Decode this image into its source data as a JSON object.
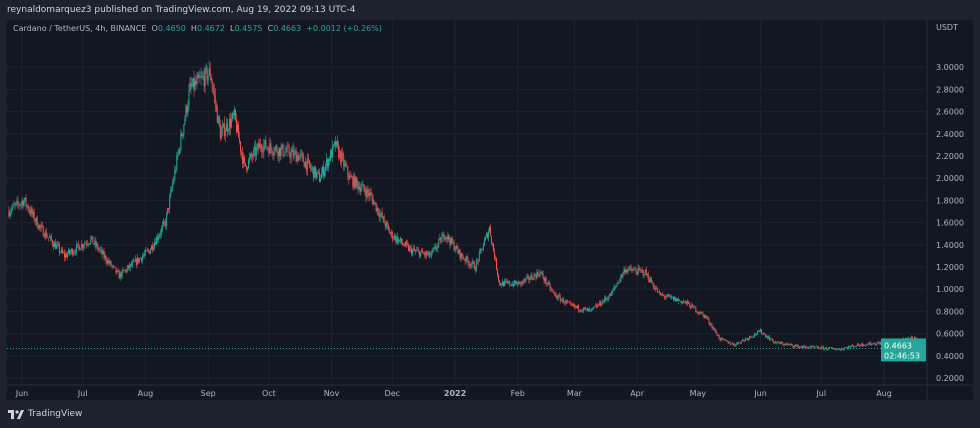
{
  "header": {
    "published": "reynaldomarquez3 published on TradingView.com, Aug 19, 2022 09:13 UTC-4"
  },
  "legend": {
    "symbol": "Cardano / TetherUS, 4h, BINANCE",
    "o_label": "O",
    "o": "0.4650",
    "h_label": "H",
    "h": "0.4672",
    "l_label": "L",
    "l": "0.4575",
    "c_label": "C",
    "c": "0.4663",
    "change": "+0.0012 (+0.26%)"
  },
  "footer": {
    "brand": "TradingView"
  },
  "colors": {
    "background": "#131722",
    "up": "#26a69a",
    "down": "#ef5350",
    "grid": "#1f2330",
    "price_label": "#26a69a"
  },
  "chart_data": {
    "type": "candlestick",
    "title": "Cardano / TetherUS, 4h, BINANCE",
    "y_unit": "USDT",
    "ylim": [
      0.1,
      3.25
    ],
    "y_ticks": [
      "0.2000",
      "0.4000",
      "0.6000",
      "0.8000",
      "1.0000",
      "1.2000",
      "1.4000",
      "1.6000",
      "1.8000",
      "2.0000",
      "2.2000",
      "2.4000",
      "2.6000",
      "2.8000",
      "3.0000"
    ],
    "x_ticks": [
      {
        "label": "Jun",
        "date": "2021-06-01"
      },
      {
        "label": "Jul",
        "date": "2021-07-01"
      },
      {
        "label": "Aug",
        "date": "2021-08-01"
      },
      {
        "label": "Sep",
        "date": "2021-09-01"
      },
      {
        "label": "Oct",
        "date": "2021-10-01"
      },
      {
        "label": "Nov",
        "date": "2021-11-01"
      },
      {
        "label": "Dec",
        "date": "2021-12-01"
      },
      {
        "label": "2022",
        "date": "2022-01-01",
        "bold": true
      },
      {
        "label": "Feb",
        "date": "2022-02-01"
      },
      {
        "label": "Mar",
        "date": "2022-03-01"
      },
      {
        "label": "Apr",
        "date": "2022-04-01"
      },
      {
        "label": "May",
        "date": "2022-05-01"
      },
      {
        "label": "Jun",
        "date": "2022-06-01"
      },
      {
        "label": "Jul",
        "date": "2022-07-01"
      },
      {
        "label": "Aug",
        "date": "2022-08-01"
      }
    ],
    "approx_close_path": [
      [
        "2021-05-25",
        1.7
      ],
      [
        "2021-06-02",
        1.8
      ],
      [
        "2021-06-10",
        1.55
      ],
      [
        "2021-06-22",
        1.3
      ],
      [
        "2021-07-05",
        1.45
      ],
      [
        "2021-07-19",
        1.12
      ],
      [
        "2021-08-03",
        1.35
      ],
      [
        "2021-08-11",
        1.6
      ],
      [
        "2021-08-16",
        2.1
      ],
      [
        "2021-08-23",
        2.8
      ],
      [
        "2021-09-02",
        2.95
      ],
      [
        "2021-09-07",
        2.4
      ],
      [
        "2021-09-14",
        2.55
      ],
      [
        "2021-09-19",
        2.1
      ],
      [
        "2021-09-27",
        2.3
      ],
      [
        "2021-10-07",
        2.25
      ],
      [
        "2021-10-16",
        2.2
      ],
      [
        "2021-10-26",
        2.0
      ],
      [
        "2021-11-03",
        2.3
      ],
      [
        "2021-11-10",
        2.0
      ],
      [
        "2021-11-20",
        1.85
      ],
      [
        "2021-11-30",
        1.5
      ],
      [
        "2021-12-10",
        1.35
      ],
      [
        "2021-12-20",
        1.3
      ],
      [
        "2021-12-27",
        1.5
      ],
      [
        "2022-01-04",
        1.3
      ],
      [
        "2022-01-11",
        1.2
      ],
      [
        "2022-01-18",
        1.55
      ],
      [
        "2022-01-23",
        1.05
      ],
      [
        "2022-02-02",
        1.05
      ],
      [
        "2022-02-12",
        1.15
      ],
      [
        "2022-02-19",
        0.95
      ],
      [
        "2022-02-27",
        0.85
      ],
      [
        "2022-03-09",
        0.8
      ],
      [
        "2022-03-19",
        0.95
      ],
      [
        "2022-03-26",
        1.18
      ],
      [
        "2022-04-05",
        1.15
      ],
      [
        "2022-04-12",
        0.95
      ],
      [
        "2022-04-25",
        0.88
      ],
      [
        "2022-05-05",
        0.75
      ],
      [
        "2022-05-12",
        0.55
      ],
      [
        "2022-05-19",
        0.5
      ],
      [
        "2022-06-01",
        0.62
      ],
      [
        "2022-06-08",
        0.52
      ],
      [
        "2022-06-21",
        0.48
      ],
      [
        "2022-07-10",
        0.46
      ],
      [
        "2022-07-20",
        0.5
      ],
      [
        "2022-08-09",
        0.53
      ],
      [
        "2022-08-16",
        0.57
      ],
      [
        "2022-08-19",
        0.4663
      ]
    ],
    "last_price": "0.4663",
    "countdown": "02:46:53",
    "grid": true
  }
}
